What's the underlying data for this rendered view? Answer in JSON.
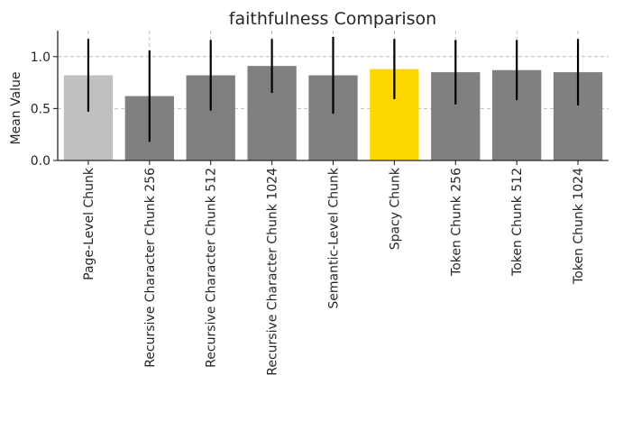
{
  "chart_data": {
    "type": "bar",
    "title": "faithfulness Comparison",
    "xlabel": "",
    "ylabel": "Mean Value",
    "ylim": [
      0,
      1.25
    ],
    "yticks": [
      0.0,
      0.5,
      1.0
    ],
    "ytick_labels": [
      "0.0",
      "0.5",
      "1.0"
    ],
    "grid": true,
    "categories": [
      "Page-Level Chunk",
      "Recursive Character Chunk 256",
      "Recursive Character Chunk 512",
      "Recursive Character Chunk 1024",
      "Semantic-Level Chunk",
      "Spacy Chunk",
      "Token Chunk 256",
      "Token Chunk 512",
      "Token Chunk 1024"
    ],
    "values": [
      0.82,
      0.62,
      0.82,
      0.91,
      0.82,
      0.88,
      0.85,
      0.87,
      0.85
    ],
    "errors": [
      0.35,
      0.44,
      0.34,
      0.26,
      0.37,
      0.29,
      0.31,
      0.29,
      0.32
    ],
    "colors": [
      "#c0c0c0",
      "#808080",
      "#808080",
      "#808080",
      "#808080",
      "#ffd700",
      "#808080",
      "#808080",
      "#808080"
    ],
    "error_color": "#000000"
  }
}
